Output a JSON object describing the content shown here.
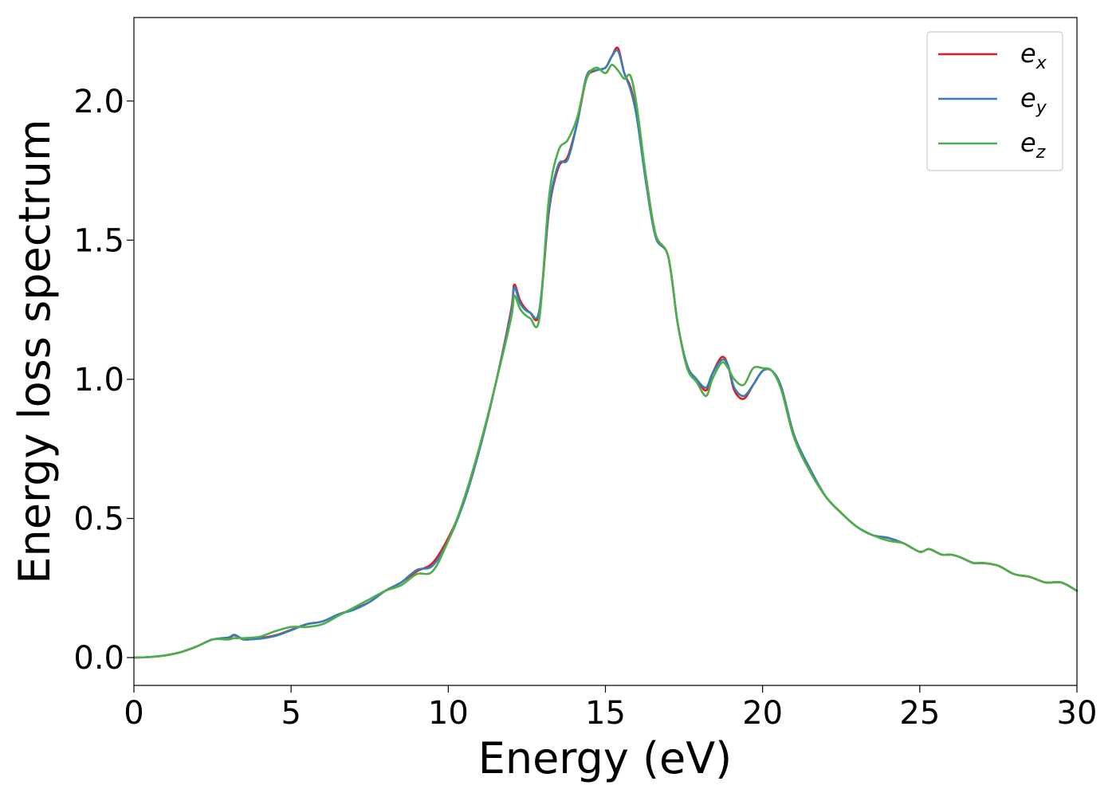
{
  "chart_data": {
    "type": "line",
    "title": "",
    "xlabel": "Energy (eV)",
    "ylabel": "Energy loss spectrum",
    "xlim": [
      0,
      30
    ],
    "ylim": [
      -0.1,
      2.3
    ],
    "xticks": [
      0,
      5,
      10,
      15,
      20,
      25,
      30
    ],
    "xtick_labels": [
      "0",
      "5",
      "10",
      "15",
      "20",
      "25",
      "30"
    ],
    "yticks": [
      0.0,
      0.5,
      1.0,
      1.5,
      2.0
    ],
    "ytick_labels": [
      "0.0",
      "0.5",
      "1.0",
      "1.5",
      "2.0"
    ],
    "grid": false,
    "legend_position": "top-right",
    "series": [
      {
        "name": "e_x",
        "legend_base": "e",
        "legend_sub": "x",
        "color": "#e41a1c",
        "x": [
          0,
          0.5,
          1,
          1.5,
          2,
          2.5,
          3,
          3.2,
          3.5,
          4,
          4.5,
          5,
          5.5,
          6,
          6.5,
          7,
          7.5,
          8,
          8.5,
          9,
          9.5,
          10,
          10.5,
          11,
          11.5,
          12,
          12.1,
          12.3,
          12.6,
          12.9,
          13.2,
          13.5,
          13.8,
          14.1,
          14.4,
          14.7,
          15.0,
          15.2,
          15.4,
          15.6,
          15.8,
          16.0,
          16.3,
          16.6,
          17.0,
          17.3,
          17.6,
          17.9,
          18.2,
          18.4,
          18.7,
          18.9,
          19.1,
          19.4,
          19.7,
          20.0,
          20.3,
          20.6,
          21.0,
          21.5,
          22.0,
          22.5,
          23.0,
          23.5,
          24.0,
          24.5,
          25.0,
          25.3,
          25.7,
          26.0,
          26.3,
          26.7,
          27.0,
          27.5,
          28.0,
          28.5,
          29.0,
          29.5,
          30.0
        ],
        "y": [
          0.0,
          0.002,
          0.008,
          0.02,
          0.04,
          0.065,
          0.07,
          0.08,
          0.065,
          0.07,
          0.08,
          0.1,
          0.12,
          0.13,
          0.155,
          0.175,
          0.2,
          0.24,
          0.27,
          0.31,
          0.34,
          0.43,
          0.56,
          0.75,
          0.98,
          1.25,
          1.34,
          1.28,
          1.24,
          1.24,
          1.6,
          1.76,
          1.8,
          1.92,
          2.08,
          2.11,
          2.12,
          2.16,
          2.19,
          2.1,
          2.05,
          1.95,
          1.72,
          1.52,
          1.44,
          1.2,
          1.05,
          1.0,
          0.96,
          1.02,
          1.08,
          1.05,
          0.96,
          0.93,
          0.98,
          1.03,
          1.03,
          0.97,
          0.8,
          0.68,
          0.58,
          0.52,
          0.47,
          0.44,
          0.43,
          0.41,
          0.38,
          0.39,
          0.37,
          0.37,
          0.36,
          0.34,
          0.34,
          0.33,
          0.3,
          0.29,
          0.27,
          0.27,
          0.24
        ]
      },
      {
        "name": "e_y",
        "legend_base": "e",
        "legend_sub": "y",
        "color": "#377eb8",
        "x": [
          0,
          0.5,
          1,
          1.5,
          2,
          2.5,
          3,
          3.2,
          3.5,
          4,
          4.5,
          5,
          5.5,
          6,
          6.5,
          7,
          7.5,
          8,
          8.5,
          9,
          9.5,
          10,
          10.5,
          11,
          11.5,
          12,
          12.1,
          12.3,
          12.6,
          12.9,
          13.2,
          13.5,
          13.8,
          14.1,
          14.4,
          14.7,
          15.0,
          15.2,
          15.4,
          15.6,
          15.8,
          16.0,
          16.3,
          16.6,
          17.0,
          17.3,
          17.6,
          17.9,
          18.2,
          18.4,
          18.7,
          18.9,
          19.1,
          19.4,
          19.7,
          20.0,
          20.3,
          20.6,
          21.0,
          21.5,
          22.0,
          22.5,
          23.0,
          23.5,
          24.0,
          24.5,
          25.0,
          25.3,
          25.7,
          26.0,
          26.3,
          26.7,
          27.0,
          27.5,
          28.0,
          28.5,
          29.0,
          29.5,
          30.0
        ],
        "y": [
          0.0,
          0.002,
          0.008,
          0.02,
          0.04,
          0.065,
          0.072,
          0.082,
          0.066,
          0.068,
          0.078,
          0.098,
          0.12,
          0.13,
          0.155,
          0.172,
          0.2,
          0.24,
          0.27,
          0.315,
          0.33,
          0.42,
          0.56,
          0.75,
          0.98,
          1.24,
          1.33,
          1.27,
          1.24,
          1.25,
          1.61,
          1.77,
          1.79,
          1.92,
          2.09,
          2.11,
          2.12,
          2.16,
          2.18,
          2.1,
          2.04,
          1.94,
          1.7,
          1.51,
          1.44,
          1.2,
          1.05,
          1.0,
          0.97,
          1.02,
          1.07,
          1.05,
          0.97,
          0.94,
          0.98,
          1.03,
          1.03,
          0.97,
          0.8,
          0.68,
          0.58,
          0.52,
          0.47,
          0.44,
          0.43,
          0.41,
          0.38,
          0.39,
          0.37,
          0.37,
          0.36,
          0.34,
          0.34,
          0.33,
          0.3,
          0.29,
          0.27,
          0.27,
          0.24
        ]
      },
      {
        "name": "e_z",
        "legend_base": "e",
        "legend_sub": "z",
        "color": "#4daf4a",
        "x": [
          0,
          0.5,
          1,
          1.5,
          2,
          2.5,
          3,
          3.2,
          3.5,
          4,
          4.5,
          5,
          5.5,
          6,
          6.5,
          7,
          7.5,
          8,
          8.5,
          9,
          9.5,
          10,
          10.5,
          11,
          11.5,
          12,
          12.1,
          12.3,
          12.6,
          12.9,
          13.2,
          13.5,
          13.8,
          14.1,
          14.4,
          14.7,
          15.0,
          15.2,
          15.4,
          15.6,
          15.8,
          16.0,
          16.3,
          16.6,
          17.0,
          17.3,
          17.6,
          17.9,
          18.2,
          18.4,
          18.7,
          18.9,
          19.1,
          19.4,
          19.7,
          20.0,
          20.3,
          20.6,
          21.0,
          21.5,
          22.0,
          22.5,
          23.0,
          23.5,
          24.0,
          24.5,
          25.0,
          25.3,
          25.7,
          26.0,
          26.3,
          26.7,
          27.0,
          27.5,
          28.0,
          28.5,
          29.0,
          29.5,
          30.0
        ],
        "y": [
          0.0,
          0.002,
          0.008,
          0.02,
          0.04,
          0.065,
          0.065,
          0.07,
          0.07,
          0.075,
          0.095,
          0.11,
          0.11,
          0.12,
          0.15,
          0.18,
          0.21,
          0.24,
          0.26,
          0.3,
          0.31,
          0.42,
          0.57,
          0.76,
          0.98,
          1.22,
          1.3,
          1.25,
          1.22,
          1.22,
          1.65,
          1.82,
          1.86,
          1.94,
          2.08,
          2.12,
          2.1,
          2.13,
          2.11,
          2.08,
          2.09,
          1.98,
          1.72,
          1.52,
          1.44,
          1.2,
          1.04,
          0.99,
          0.94,
          1.0,
          1.06,
          1.04,
          1.0,
          0.98,
          1.04,
          1.04,
          1.03,
          0.96,
          0.79,
          0.67,
          0.58,
          0.52,
          0.47,
          0.44,
          0.42,
          0.41,
          0.38,
          0.39,
          0.37,
          0.37,
          0.36,
          0.34,
          0.34,
          0.33,
          0.3,
          0.29,
          0.27,
          0.27,
          0.24
        ]
      }
    ]
  }
}
